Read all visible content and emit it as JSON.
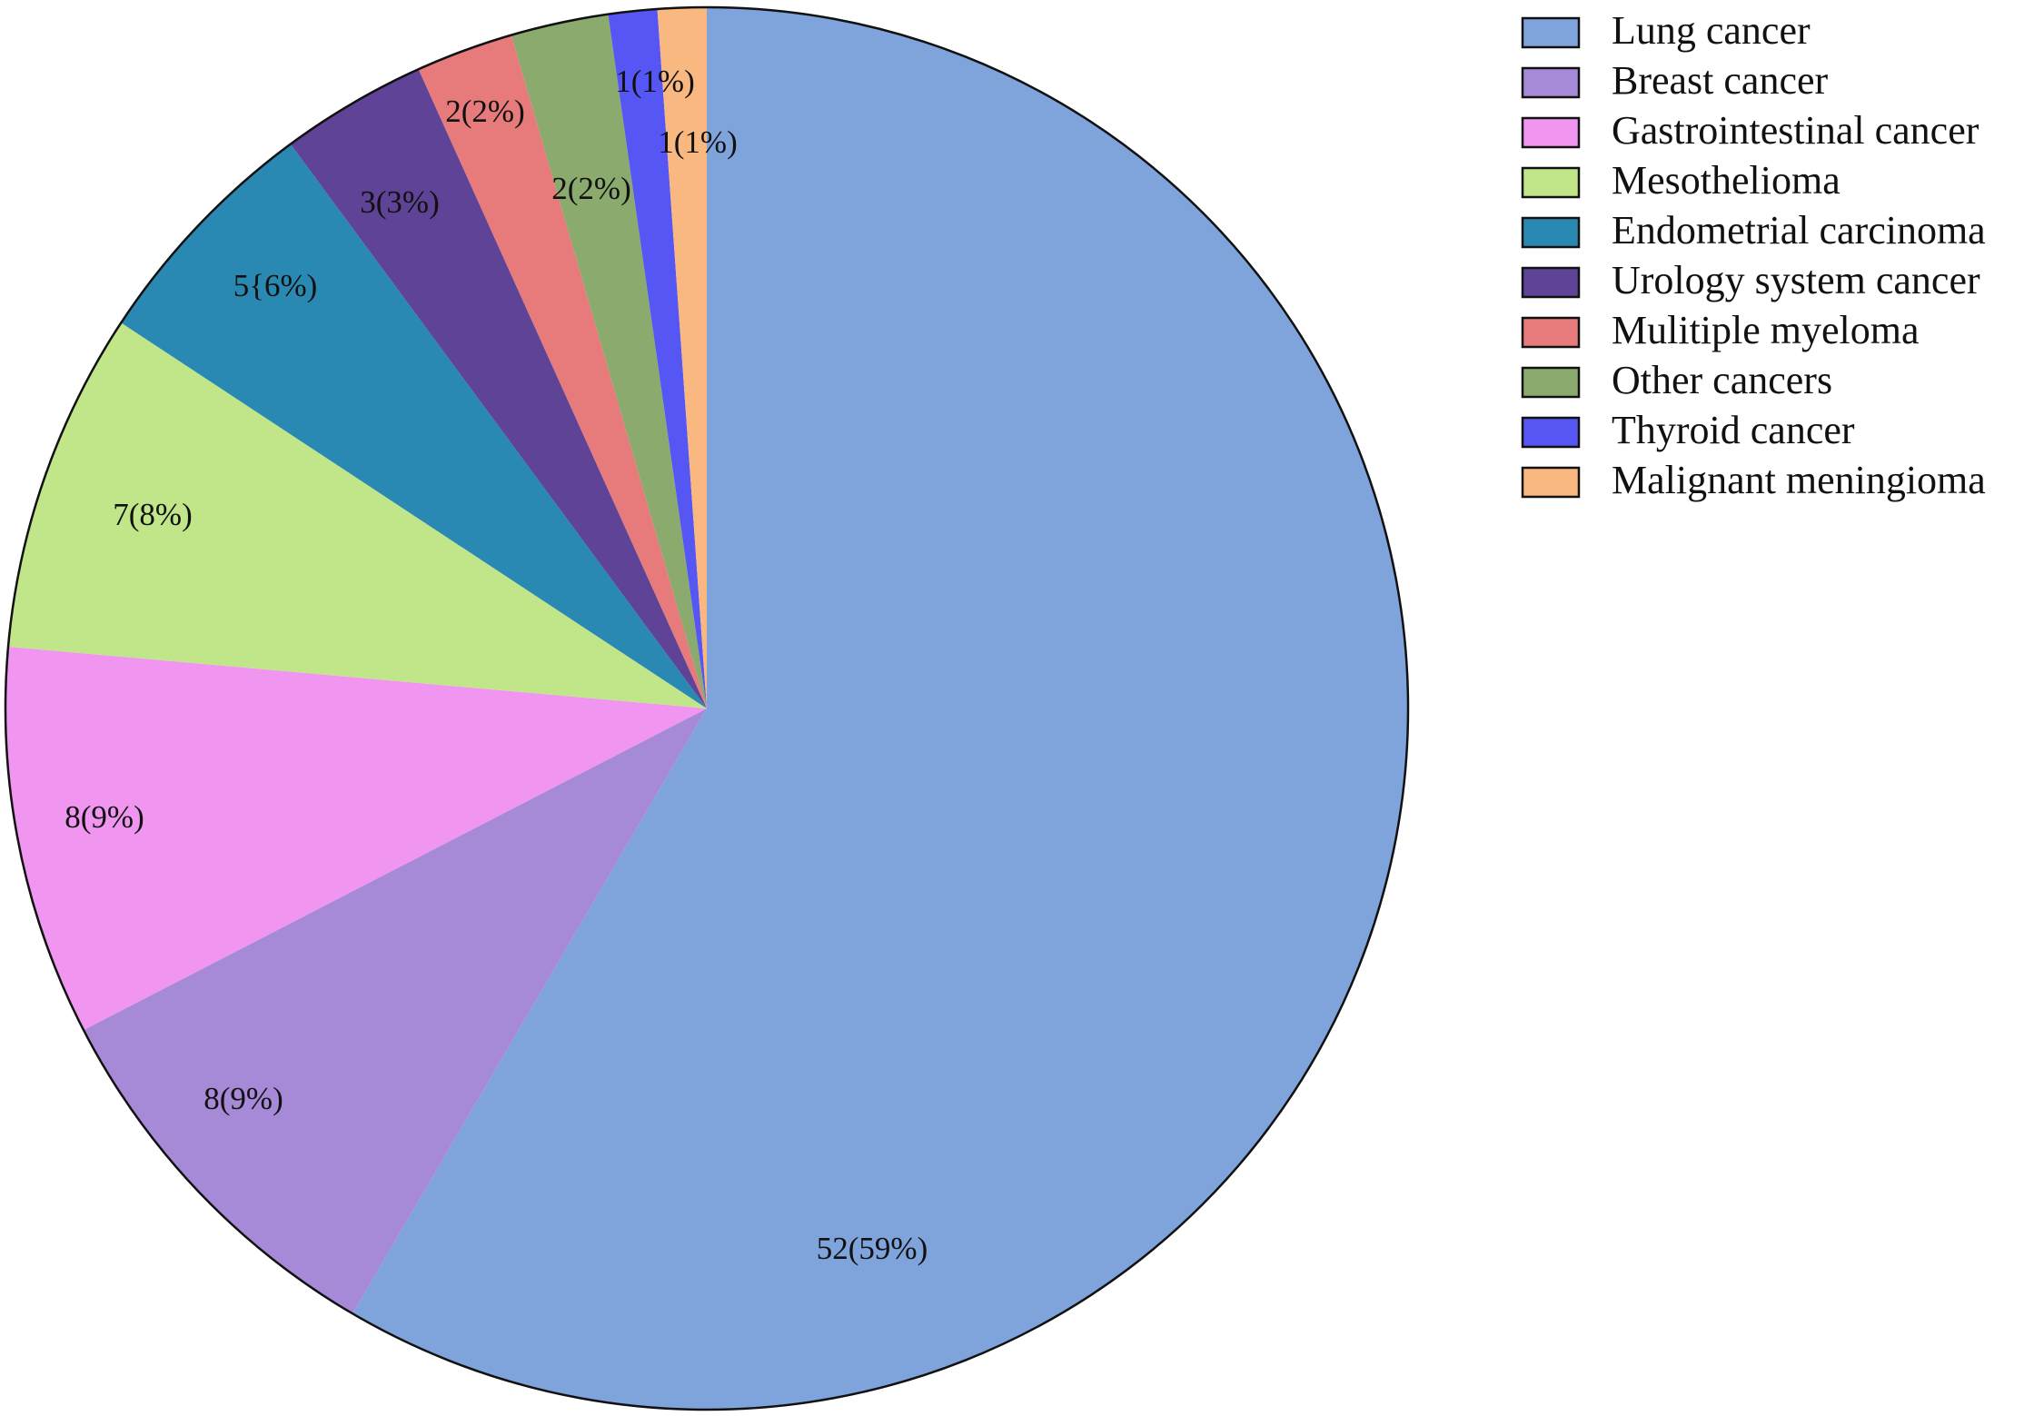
{
  "chart_data": {
    "type": "pie",
    "title": "",
    "start": "top",
    "direction": "clockwise",
    "legend_position": "top-right",
    "slices": [
      {
        "name": "Lung cancer",
        "value": 52,
        "percent": 59,
        "label": "52(59%)",
        "color": "#7FA3DB"
      },
      {
        "name": "Breast cancer",
        "value": 8,
        "percent": 9,
        "label": "8(9%)",
        "color": "#A68AD8"
      },
      {
        "name": "Gastrointestinal cancer",
        "value": 8,
        "percent": 9,
        "label": "8(9%)",
        "color": "#F095F0"
      },
      {
        "name": "Mesothelioma",
        "value": 7,
        "percent": 8,
        "label": "7(8%)",
        "color": "#C1E68A"
      },
      {
        "name": "Endometrial carcinoma",
        "value": 5,
        "percent": 6,
        "label": "5{6%)",
        "color": "#2A89B3"
      },
      {
        "name": "Urology system cancer",
        "value": 3,
        "percent": 3,
        "label": "3(3%)",
        "color": "#5E4396"
      },
      {
        "name": "Mulitiple myeloma",
        "value": 2,
        "percent": 2,
        "label": "2(2%)",
        "color": "#E77A7A"
      },
      {
        "name": "Other cancers",
        "value": 2,
        "percent": 2,
        "label": "2(2%)",
        "color": "#8BAA6D"
      },
      {
        "name": "Thyroid cancer",
        "value": 1,
        "percent": 1,
        "label": "1(1%)",
        "color": "#5656F5"
      },
      {
        "name": "Malignant meningioma",
        "value": 1,
        "percent": 1,
        "label": "1(1%)",
        "color": "#F9B87F"
      }
    ]
  }
}
